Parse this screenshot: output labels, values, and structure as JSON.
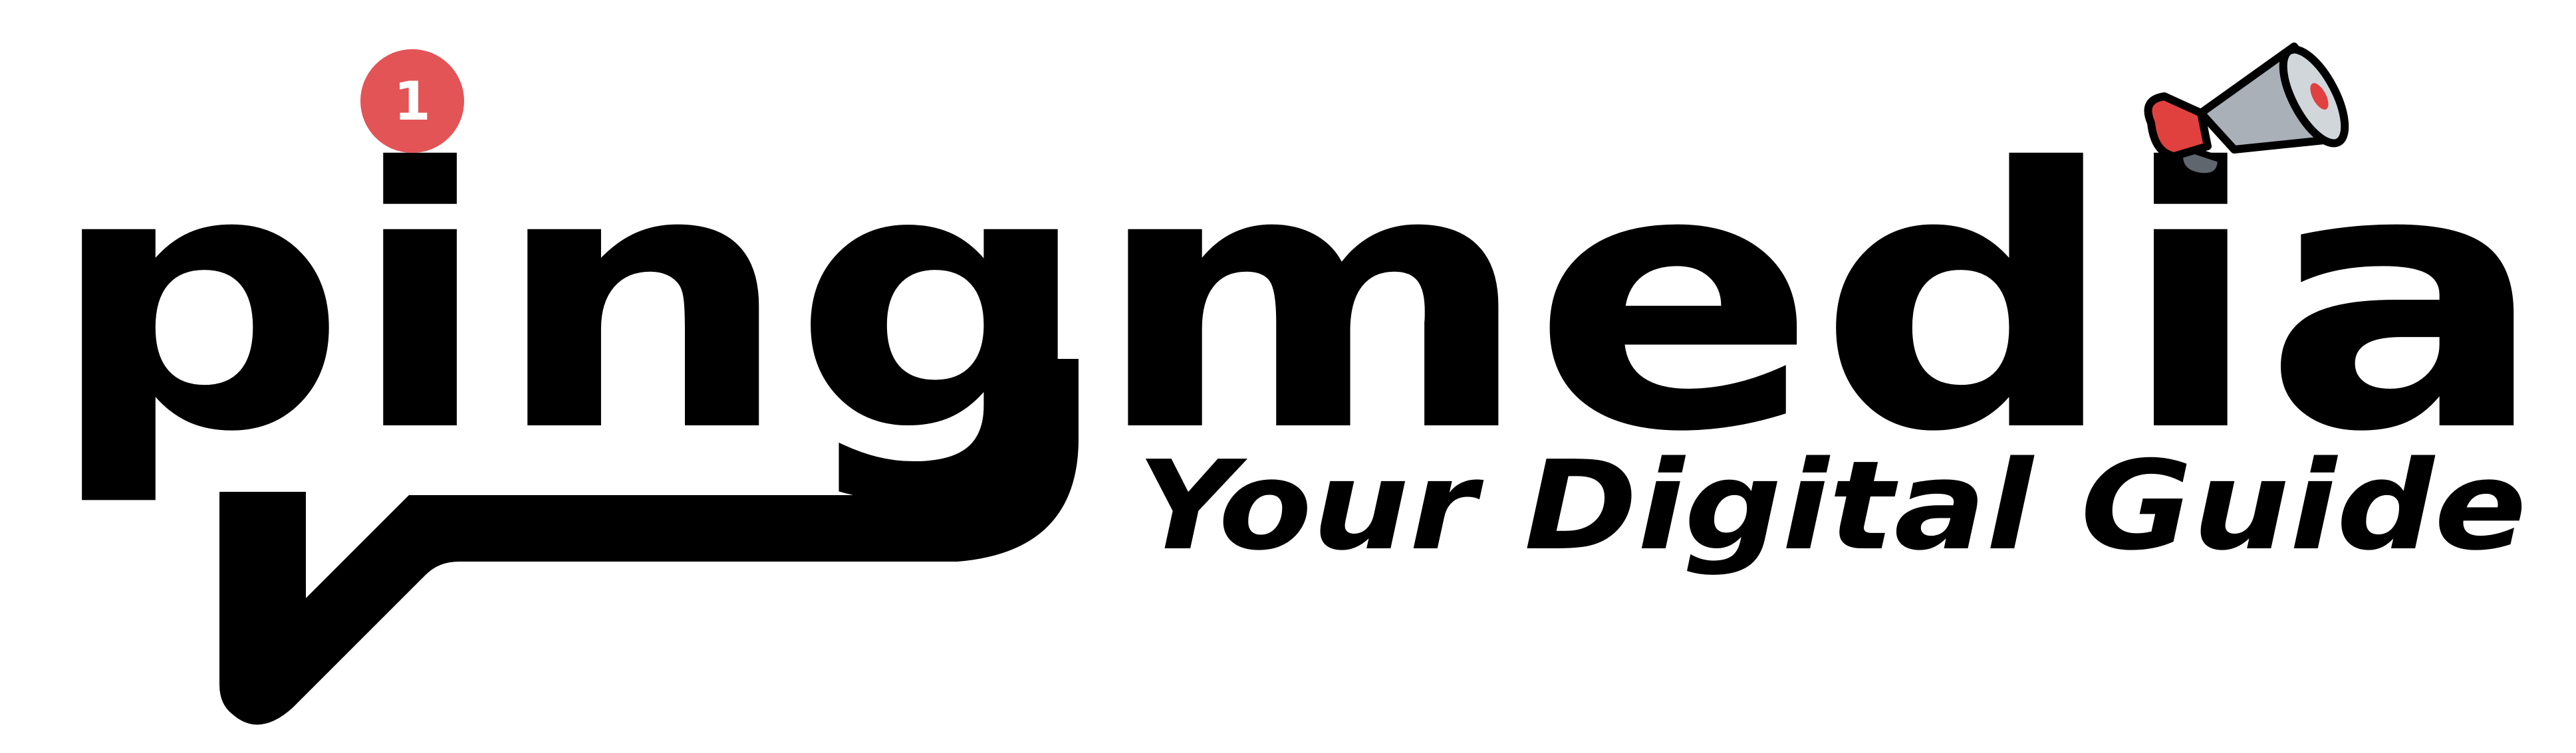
{
  "logo": {
    "brand_name": "pingmedia",
    "tagline": "Your Digital Guide",
    "notification_count": "1",
    "icons": {
      "notification": "notification-badge-icon",
      "megaphone": "megaphone-icon",
      "speech_tail": "speech-bubble-tail-icon"
    }
  },
  "colors": {
    "ink": "#000000",
    "badge": "#e35457",
    "badge_text": "#ffffff",
    "megaphone_body": "#a9b0b8",
    "megaphone_dark": "#5f666d",
    "megaphone_red": "#e0413f"
  }
}
